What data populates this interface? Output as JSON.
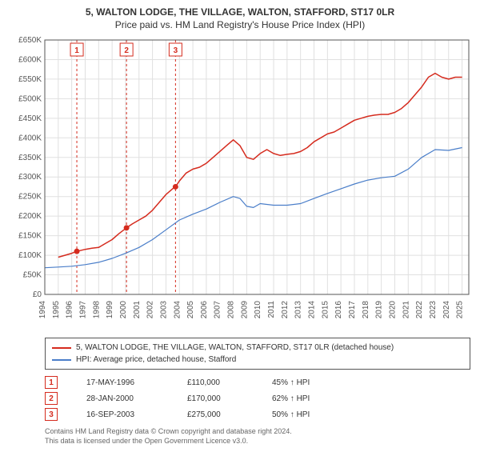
{
  "title_line1": "5, WALTON LODGE, THE VILLAGE, WALTON, STAFFORD, ST17 0LR",
  "title_line2": "Price paid vs. HM Land Registry's House Price Index (HPI)",
  "chart": {
    "type": "line",
    "background_color": "#ffffff",
    "plot_border_color": "#555555",
    "grid_color": "#e0e0e0",
    "x_years": [
      1994,
      1995,
      1996,
      1997,
      1998,
      1999,
      2000,
      2001,
      2002,
      2003,
      2004,
      2005,
      2006,
      2007,
      2008,
      2009,
      2010,
      2011,
      2012,
      2013,
      2014,
      2015,
      2016,
      2017,
      2018,
      2019,
      2020,
      2021,
      2022,
      2023,
      2024,
      2025
    ],
    "y_ticks": [
      0,
      50000,
      100000,
      150000,
      200000,
      250000,
      300000,
      350000,
      400000,
      450000,
      500000,
      550000,
      600000,
      650000
    ],
    "y_tick_labels": [
      "£0",
      "£50K",
      "£100K",
      "£150K",
      "£200K",
      "£250K",
      "£300K",
      "£350K",
      "£400K",
      "£450K",
      "£500K",
      "£550K",
      "£600K",
      "£650K"
    ],
    "ylim": [
      0,
      650000
    ],
    "xlim": [
      1994,
      2025.5
    ],
    "label_fontsize": 10,
    "series": [
      {
        "name": "property",
        "color": "#d52b1e",
        "width": 1.5,
        "points": [
          [
            1995.0,
            95000
          ],
          [
            1995.5,
            100000
          ],
          [
            1996.0,
            105000
          ],
          [
            1996.38,
            110000
          ],
          [
            1997.0,
            115000
          ],
          [
            1997.5,
            118000
          ],
          [
            1998.0,
            120000
          ],
          [
            1998.5,
            130000
          ],
          [
            1999.0,
            140000
          ],
          [
            1999.5,
            155000
          ],
          [
            2000.07,
            170000
          ],
          [
            2000.5,
            180000
          ],
          [
            2001.0,
            190000
          ],
          [
            2001.5,
            200000
          ],
          [
            2002.0,
            215000
          ],
          [
            2002.5,
            235000
          ],
          [
            2003.0,
            255000
          ],
          [
            2003.5,
            270000
          ],
          [
            2003.71,
            275000
          ],
          [
            2004.0,
            290000
          ],
          [
            2004.5,
            310000
          ],
          [
            2005.0,
            320000
          ],
          [
            2005.5,
            325000
          ],
          [
            2006.0,
            335000
          ],
          [
            2006.5,
            350000
          ],
          [
            2007.0,
            365000
          ],
          [
            2007.5,
            380000
          ],
          [
            2008.0,
            395000
          ],
          [
            2008.5,
            380000
          ],
          [
            2009.0,
            350000
          ],
          [
            2009.5,
            345000
          ],
          [
            2010.0,
            360000
          ],
          [
            2010.5,
            370000
          ],
          [
            2011.0,
            360000
          ],
          [
            2011.5,
            355000
          ],
          [
            2012.0,
            358000
          ],
          [
            2012.5,
            360000
          ],
          [
            2013.0,
            365000
          ],
          [
            2013.5,
            375000
          ],
          [
            2014.0,
            390000
          ],
          [
            2014.5,
            400000
          ],
          [
            2015.0,
            410000
          ],
          [
            2015.5,
            415000
          ],
          [
            2016.0,
            425000
          ],
          [
            2016.5,
            435000
          ],
          [
            2017.0,
            445000
          ],
          [
            2017.5,
            450000
          ],
          [
            2018.0,
            455000
          ],
          [
            2018.5,
            458000
          ],
          [
            2019.0,
            460000
          ],
          [
            2019.5,
            460000
          ],
          [
            2020.0,
            465000
          ],
          [
            2020.5,
            475000
          ],
          [
            2021.0,
            490000
          ],
          [
            2021.5,
            510000
          ],
          [
            2022.0,
            530000
          ],
          [
            2022.5,
            555000
          ],
          [
            2023.0,
            565000
          ],
          [
            2023.5,
            555000
          ],
          [
            2024.0,
            550000
          ],
          [
            2024.5,
            555000
          ],
          [
            2025.0,
            555000
          ]
        ]
      },
      {
        "name": "hpi",
        "color": "#4a7ec9",
        "width": 1.2,
        "points": [
          [
            1994.0,
            68000
          ],
          [
            1995.0,
            70000
          ],
          [
            1996.0,
            72000
          ],
          [
            1997.0,
            76000
          ],
          [
            1998.0,
            82000
          ],
          [
            1999.0,
            92000
          ],
          [
            2000.0,
            105000
          ],
          [
            2001.0,
            120000
          ],
          [
            2002.0,
            140000
          ],
          [
            2003.0,
            165000
          ],
          [
            2004.0,
            190000
          ],
          [
            2005.0,
            205000
          ],
          [
            2006.0,
            218000
          ],
          [
            2007.0,
            235000
          ],
          [
            2008.0,
            250000
          ],
          [
            2008.5,
            245000
          ],
          [
            2009.0,
            225000
          ],
          [
            2009.5,
            222000
          ],
          [
            2010.0,
            232000
          ],
          [
            2011.0,
            228000
          ],
          [
            2012.0,
            228000
          ],
          [
            2013.0,
            232000
          ],
          [
            2014.0,
            245000
          ],
          [
            2015.0,
            258000
          ],
          [
            2016.0,
            270000
          ],
          [
            2017.0,
            282000
          ],
          [
            2018.0,
            292000
          ],
          [
            2019.0,
            298000
          ],
          [
            2020.0,
            302000
          ],
          [
            2021.0,
            320000
          ],
          [
            2022.0,
            350000
          ],
          [
            2023.0,
            370000
          ],
          [
            2024.0,
            368000
          ],
          [
            2025.0,
            375000
          ]
        ]
      }
    ],
    "sale_markers": [
      {
        "num": "1",
        "year": 1996.38,
        "price": 110000,
        "dash_color": "#d52b1e"
      },
      {
        "num": "2",
        "year": 2000.07,
        "price": 170000,
        "dash_color": "#d52b1e"
      },
      {
        "num": "3",
        "year": 2003.71,
        "price": 275000,
        "dash_color": "#d52b1e"
      }
    ]
  },
  "legend": {
    "border_color": "#555555",
    "items": [
      {
        "color": "#d52b1e",
        "label": "5, WALTON LODGE, THE VILLAGE, WALTON, STAFFORD, ST17 0LR (detached house)"
      },
      {
        "color": "#4a7ec9",
        "label": "HPI: Average price, detached house, Stafford"
      }
    ]
  },
  "markers_table": {
    "border_color": "#d52b1e",
    "text_color": "#333333",
    "rows": [
      {
        "num": "1",
        "date": "17-MAY-1996",
        "price": "£110,000",
        "pct": "45% ↑ HPI"
      },
      {
        "num": "2",
        "date": "28-JAN-2000",
        "price": "£170,000",
        "pct": "62% ↑ HPI"
      },
      {
        "num": "3",
        "date": "16-SEP-2003",
        "price": "£275,000",
        "pct": "50% ↑ HPI"
      }
    ]
  },
  "footer_line1": "Contains HM Land Registry data © Crown copyright and database right 2024.",
  "footer_line2": "This data is licensed under the Open Government Licence v3.0."
}
